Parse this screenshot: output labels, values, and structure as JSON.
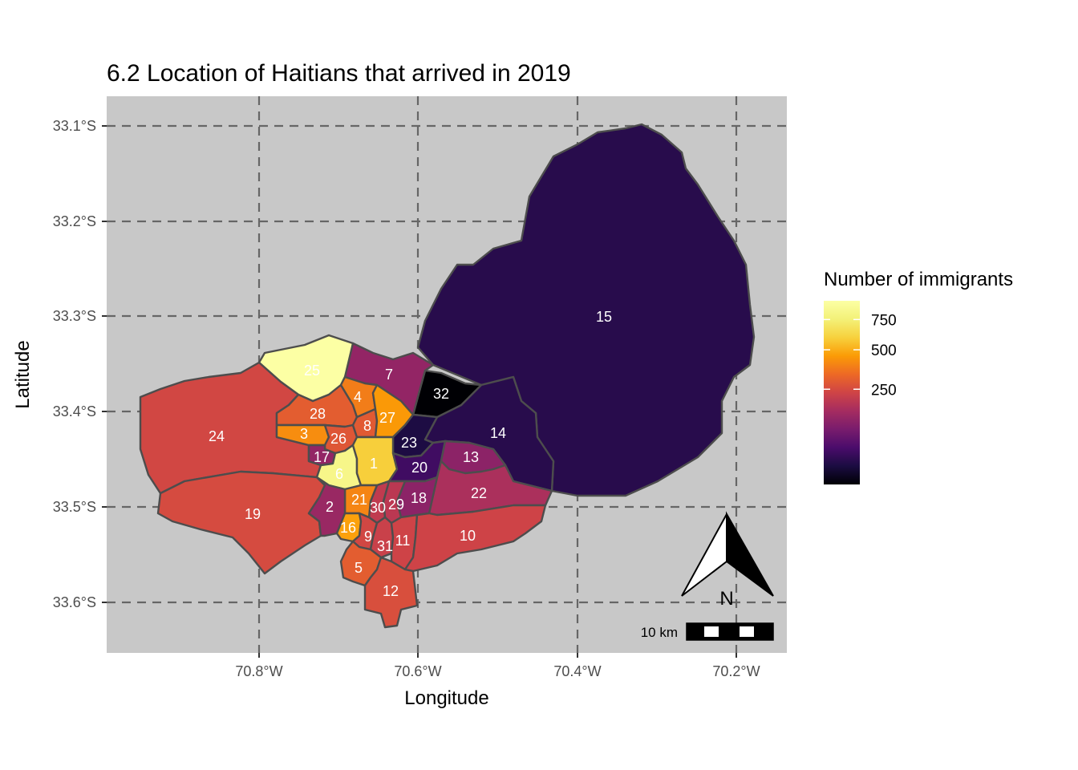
{
  "title": "6.2 Location of Haitians that arrived in 2019",
  "xlabel": "Longitude",
  "ylabel": "Latitude",
  "legend": {
    "title": "Number of immigrants",
    "ticks": [
      {
        "label": "750",
        "value": 750
      },
      {
        "label": "500",
        "value": 500
      },
      {
        "label": "250",
        "value": 250
      }
    ],
    "range": [
      0,
      930
    ]
  },
  "scalebar_label": "10 km",
  "north_label": "N",
  "axes": {
    "x_ticks": [
      {
        "label": "70.8°W",
        "value": -70.8
      },
      {
        "label": "70.6°W",
        "value": -70.6
      },
      {
        "label": "70.4°W",
        "value": -70.4
      },
      {
        "label": "70.2°W",
        "value": -70.2
      }
    ],
    "y_ticks": [
      {
        "label": "33.1°S",
        "value": -33.1
      },
      {
        "label": "33.2°S",
        "value": -33.2
      },
      {
        "label": "33.3°S",
        "value": -33.3
      },
      {
        "label": "33.4°S",
        "value": -33.4
      },
      {
        "label": "33.5°S",
        "value": -33.5
      },
      {
        "label": "33.6°S",
        "value": -33.6
      }
    ],
    "xlim": [
      -70.993,
      -70.134
    ],
    "ylim": [
      -33.654,
      -33.069
    ]
  },
  "colors": {
    "panel": "#c8c8c8",
    "grid": "#666666",
    "border": "#4d4d4d"
  },
  "regions": [
    {
      "id": "1",
      "value": 590
    },
    {
      "id": "2",
      "value": 130
    },
    {
      "id": "3",
      "value": 420
    },
    {
      "id": "4",
      "value": 380
    },
    {
      "id": "5",
      "value": 300
    },
    {
      "id": "6",
      "value": 820
    },
    {
      "id": "7",
      "value": 120
    },
    {
      "id": "8",
      "value": 290
    },
    {
      "id": "9",
      "value": 240
    },
    {
      "id": "10",
      "value": 230
    },
    {
      "id": "11",
      "value": 230
    },
    {
      "id": "12",
      "value": 260
    },
    {
      "id": "13",
      "value": 110
    },
    {
      "id": "14",
      "value": 15
    },
    {
      "id": "15",
      "value": 15
    },
    {
      "id": "16",
      "value": 470
    },
    {
      "id": "17",
      "value": 120
    },
    {
      "id": "18",
      "value": 110
    },
    {
      "id": "19",
      "value": 250
    },
    {
      "id": "20",
      "value": 30
    },
    {
      "id": "21",
      "value": 400
    },
    {
      "id": "22",
      "value": 160
    },
    {
      "id": "23",
      "value": 10
    },
    {
      "id": "24",
      "value": 240
    },
    {
      "id": "25",
      "value": 930
    },
    {
      "id": "26",
      "value": 280
    },
    {
      "id": "27",
      "value": 450
    },
    {
      "id": "28",
      "value": 300
    },
    {
      "id": "29",
      "value": 190
    },
    {
      "id": "30",
      "value": 200
    },
    {
      "id": "31",
      "value": 220
    },
    {
      "id": "32",
      "value": 0
    }
  ]
}
